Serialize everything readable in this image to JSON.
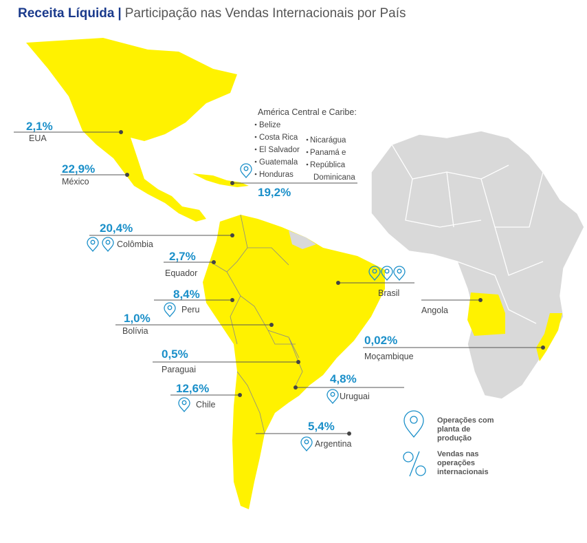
{
  "header": {
    "title_bold": "Receita Líquida",
    "separator": "|",
    "title": "Participação nas Vendas Internacionais por País"
  },
  "countries": [
    {
      "name": "EUA",
      "share": "2,1%"
    },
    {
      "name": "México",
      "share": "22,9%"
    },
    {
      "name": "Colômbia",
      "share": "20,4%"
    },
    {
      "name": "Equador",
      "share": "2,7%"
    },
    {
      "name": "Peru",
      "share": "8,4%"
    },
    {
      "name": "Bolívia",
      "share": "1,0%"
    },
    {
      "name": "Paraguai",
      "share": "0,5%"
    },
    {
      "name": "Chile",
      "share": "12,6%"
    },
    {
      "name": "Argentina",
      "share": "5,4%"
    },
    {
      "name": "Uruguai",
      "share": "4,8%"
    },
    {
      "name": "Brasil"
    },
    {
      "name": "Angola"
    },
    {
      "name": "Moçambique",
      "share": "0,02%"
    }
  ],
  "central_america": {
    "title": "América Central e Caribe:",
    "items_left": [
      "Belize",
      "Costa Rica",
      "El Salvador",
      "Guatemala",
      "Honduras"
    ],
    "items_right": [
      "Nicarágua",
      "Panamá e",
      "República",
      "Dominicana"
    ],
    "share": "19,2%"
  },
  "legend": [
    {
      "lines": [
        "Operações com",
        "planta de",
        "produção"
      ]
    },
    {
      "lines": [
        "Vendas nas",
        "operações",
        "internacionais"
      ]
    }
  ]
}
